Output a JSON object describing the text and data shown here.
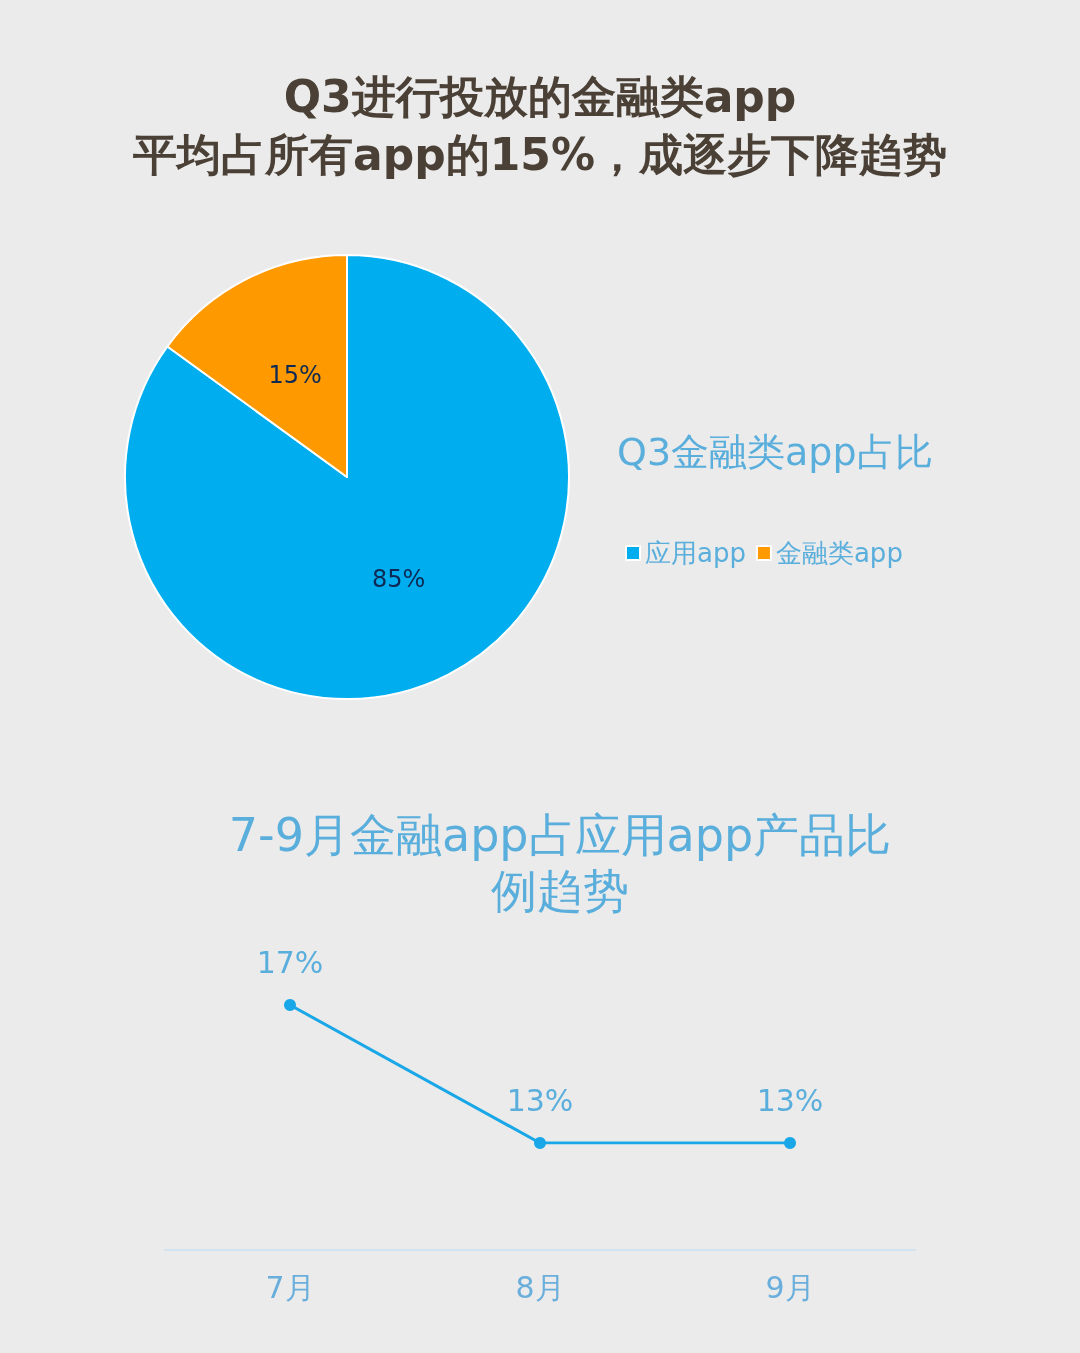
{
  "chart_data": [
    {
      "type": "pie",
      "title": "Q3进行投放的金融类app\n平均占所有app的15%，成逐步下降趋势",
      "subtitle": "Q3金融类app占比",
      "categories": [
        "应用app",
        "金融类app"
      ],
      "values": [
        85,
        15
      ],
      "colors": [
        "#00aeef",
        "#ff9900"
      ],
      "value_labels": [
        "85%",
        "15%"
      ],
      "legend": "right"
    },
    {
      "type": "line",
      "title": "7-9月金融app占应用app产品比例趋势",
      "categories": [
        "7月",
        "8月",
        "9月"
      ],
      "series": [
        {
          "color": "#1aa7e8",
          "values": [
            17,
            13,
            13
          ],
          "value_labels": [
            "17%",
            "13%",
            "13%"
          ]
        }
      ],
      "marker": "circle",
      "line_style": "solid",
      "grid": false,
      "legend": false
    }
  ]
}
